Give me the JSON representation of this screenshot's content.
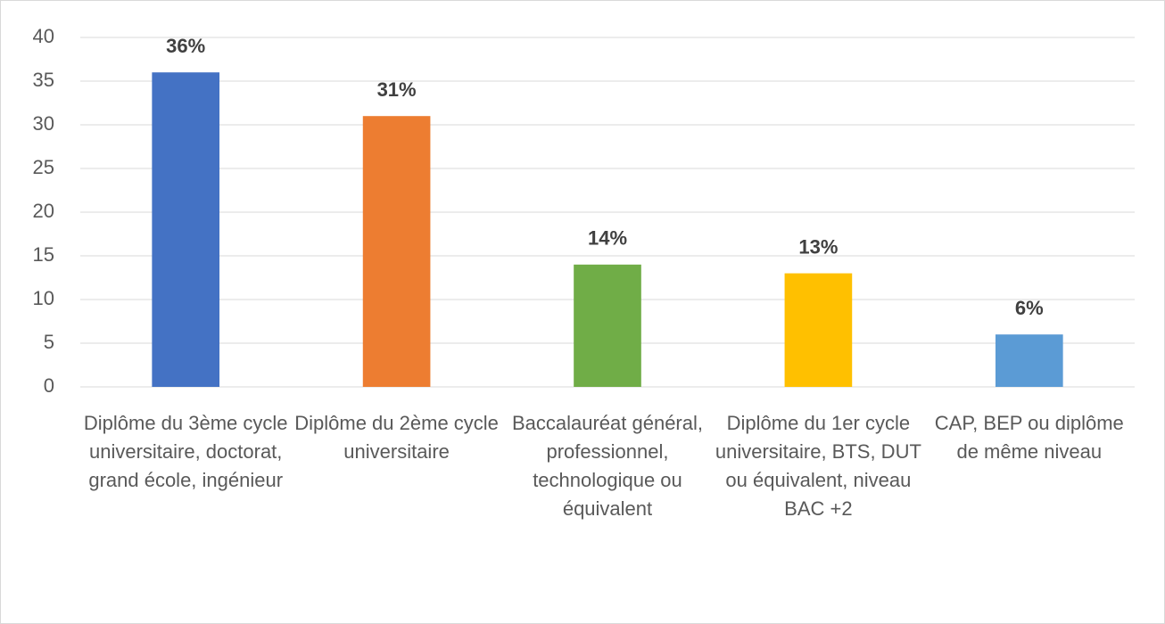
{
  "chart_data": {
    "type": "bar",
    "categories": [
      "Diplôme du 3ème cycle universitaire, doctorat, grand école, ingénieur",
      "Diplôme du 2ème cycle universitaire",
      "Baccalauréat général, professionnel, technologique ou équivalent",
      "Diplôme du 1er cycle universitaire, BTS, DUT ou équivalent, niveau BAC +2",
      "CAP, BEP ou diplôme de même niveau"
    ],
    "values": [
      36,
      31,
      14,
      13,
      6
    ],
    "value_labels": [
      "36%",
      "31%",
      "14%",
      "13%",
      "6%"
    ],
    "colors": [
      "#4472c4",
      "#ed7d31",
      "#70ad47",
      "#ffc000",
      "#5b9bd5"
    ],
    "ylim": [
      0,
      40
    ],
    "yticks": [
      0,
      5,
      10,
      15,
      20,
      25,
      30,
      35,
      40
    ],
    "grid": true
  }
}
